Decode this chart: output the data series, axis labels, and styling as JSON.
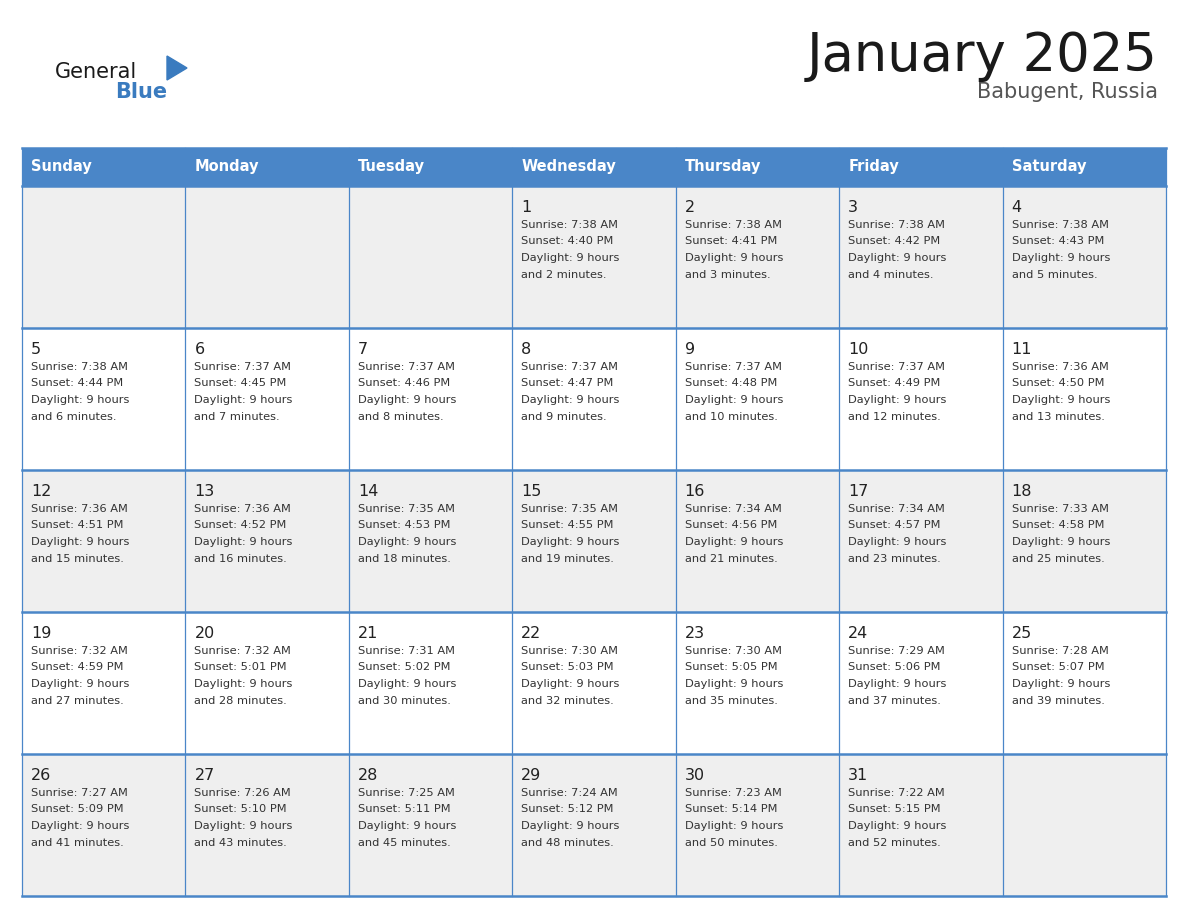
{
  "title": "January 2025",
  "subtitle": "Babugent, Russia",
  "days_of_week": [
    "Sunday",
    "Monday",
    "Tuesday",
    "Wednesday",
    "Thursday",
    "Friday",
    "Saturday"
  ],
  "header_bg": "#4a86c8",
  "header_text_color": "#ffffff",
  "cell_bg_light": "#efefef",
  "cell_bg_white": "#ffffff",
  "cell_border_color": "#4a86c8",
  "day_number_color": "#222222",
  "cell_text_color": "#333333",
  "title_color": "#1a1a1a",
  "subtitle_color": "#555555",
  "logo_general_color": "#1a1a1a",
  "logo_blue_color": "#3a7bbf",
  "calendar_data": [
    [
      null,
      null,
      null,
      {
        "day": 1,
        "sunrise": "7:38 AM",
        "sunset": "4:40 PM",
        "daylight_hours": 9,
        "daylight_minutes": 2
      },
      {
        "day": 2,
        "sunrise": "7:38 AM",
        "sunset": "4:41 PM",
        "daylight_hours": 9,
        "daylight_minutes": 3
      },
      {
        "day": 3,
        "sunrise": "7:38 AM",
        "sunset": "4:42 PM",
        "daylight_hours": 9,
        "daylight_minutes": 4
      },
      {
        "day": 4,
        "sunrise": "7:38 AM",
        "sunset": "4:43 PM",
        "daylight_hours": 9,
        "daylight_minutes": 5
      }
    ],
    [
      {
        "day": 5,
        "sunrise": "7:38 AM",
        "sunset": "4:44 PM",
        "daylight_hours": 9,
        "daylight_minutes": 6
      },
      {
        "day": 6,
        "sunrise": "7:37 AM",
        "sunset": "4:45 PM",
        "daylight_hours": 9,
        "daylight_minutes": 7
      },
      {
        "day": 7,
        "sunrise": "7:37 AM",
        "sunset": "4:46 PM",
        "daylight_hours": 9,
        "daylight_minutes": 8
      },
      {
        "day": 8,
        "sunrise": "7:37 AM",
        "sunset": "4:47 PM",
        "daylight_hours": 9,
        "daylight_minutes": 9
      },
      {
        "day": 9,
        "sunrise": "7:37 AM",
        "sunset": "4:48 PM",
        "daylight_hours": 9,
        "daylight_minutes": 10
      },
      {
        "day": 10,
        "sunrise": "7:37 AM",
        "sunset": "4:49 PM",
        "daylight_hours": 9,
        "daylight_minutes": 12
      },
      {
        "day": 11,
        "sunrise": "7:36 AM",
        "sunset": "4:50 PM",
        "daylight_hours": 9,
        "daylight_minutes": 13
      }
    ],
    [
      {
        "day": 12,
        "sunrise": "7:36 AM",
        "sunset": "4:51 PM",
        "daylight_hours": 9,
        "daylight_minutes": 15
      },
      {
        "day": 13,
        "sunrise": "7:36 AM",
        "sunset": "4:52 PM",
        "daylight_hours": 9,
        "daylight_minutes": 16
      },
      {
        "day": 14,
        "sunrise": "7:35 AM",
        "sunset": "4:53 PM",
        "daylight_hours": 9,
        "daylight_minutes": 18
      },
      {
        "day": 15,
        "sunrise": "7:35 AM",
        "sunset": "4:55 PM",
        "daylight_hours": 9,
        "daylight_minutes": 19
      },
      {
        "day": 16,
        "sunrise": "7:34 AM",
        "sunset": "4:56 PM",
        "daylight_hours": 9,
        "daylight_minutes": 21
      },
      {
        "day": 17,
        "sunrise": "7:34 AM",
        "sunset": "4:57 PM",
        "daylight_hours": 9,
        "daylight_minutes": 23
      },
      {
        "day": 18,
        "sunrise": "7:33 AM",
        "sunset": "4:58 PM",
        "daylight_hours": 9,
        "daylight_minutes": 25
      }
    ],
    [
      {
        "day": 19,
        "sunrise": "7:32 AM",
        "sunset": "4:59 PM",
        "daylight_hours": 9,
        "daylight_minutes": 27
      },
      {
        "day": 20,
        "sunrise": "7:32 AM",
        "sunset": "5:01 PM",
        "daylight_hours": 9,
        "daylight_minutes": 28
      },
      {
        "day": 21,
        "sunrise": "7:31 AM",
        "sunset": "5:02 PM",
        "daylight_hours": 9,
        "daylight_minutes": 30
      },
      {
        "day": 22,
        "sunrise": "7:30 AM",
        "sunset": "5:03 PM",
        "daylight_hours": 9,
        "daylight_minutes": 32
      },
      {
        "day": 23,
        "sunrise": "7:30 AM",
        "sunset": "5:05 PM",
        "daylight_hours": 9,
        "daylight_minutes": 35
      },
      {
        "day": 24,
        "sunrise": "7:29 AM",
        "sunset": "5:06 PM",
        "daylight_hours": 9,
        "daylight_minutes": 37
      },
      {
        "day": 25,
        "sunrise": "7:28 AM",
        "sunset": "5:07 PM",
        "daylight_hours": 9,
        "daylight_minutes": 39
      }
    ],
    [
      {
        "day": 26,
        "sunrise": "7:27 AM",
        "sunset": "5:09 PM",
        "daylight_hours": 9,
        "daylight_minutes": 41
      },
      {
        "day": 27,
        "sunrise": "7:26 AM",
        "sunset": "5:10 PM",
        "daylight_hours": 9,
        "daylight_minutes": 43
      },
      {
        "day": 28,
        "sunrise": "7:25 AM",
        "sunset": "5:11 PM",
        "daylight_hours": 9,
        "daylight_minutes": 45
      },
      {
        "day": 29,
        "sunrise": "7:24 AM",
        "sunset": "5:12 PM",
        "daylight_hours": 9,
        "daylight_minutes": 48
      },
      {
        "day": 30,
        "sunrise": "7:23 AM",
        "sunset": "5:14 PM",
        "daylight_hours": 9,
        "daylight_minutes": 50
      },
      {
        "day": 31,
        "sunrise": "7:22 AM",
        "sunset": "5:15 PM",
        "daylight_hours": 9,
        "daylight_minutes": 52
      },
      null
    ]
  ]
}
